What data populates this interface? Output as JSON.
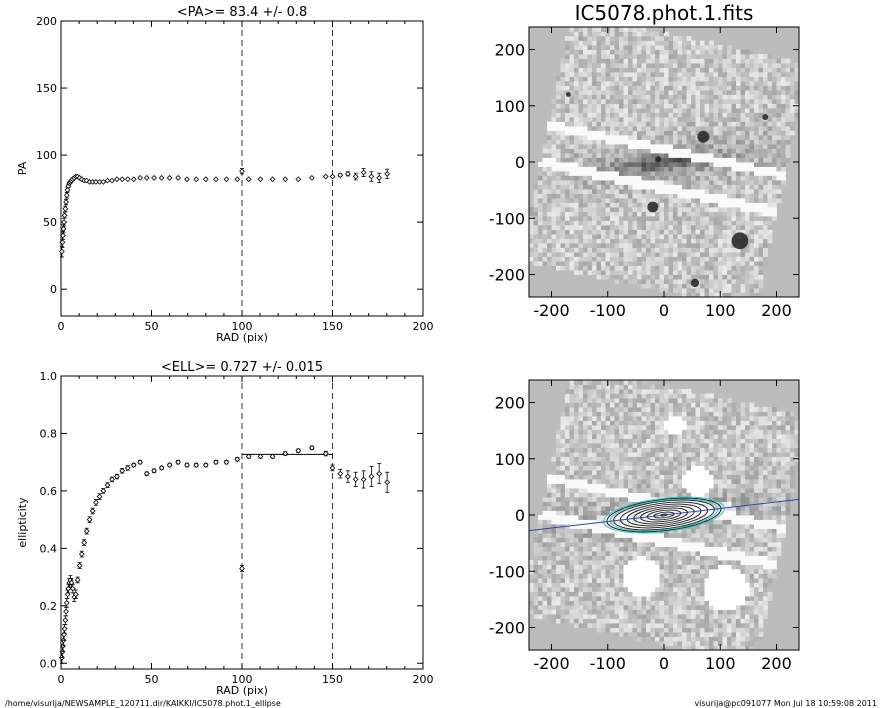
{
  "footer": {
    "left": "/home/visurija/NEWSAMPLE_120711.dir/KAIKKI/IC5078.phot.1_ellipse",
    "right": "visurija@pc091077  Mon Jul 18 10:59:08 2011"
  },
  "chart_data": [
    {
      "type": "scatter",
      "title": "<PA>=  83.4 +/-   0.8",
      "xlabel": "RAD (pix)",
      "ylabel": "PA",
      "xlim": [
        0,
        200
      ],
      "ylim": [
        -20,
        200
      ],
      "xticks": [
        0,
        50,
        100,
        150,
        200
      ],
      "yticks": [
        0,
        50,
        100,
        150,
        200
      ],
      "vlines": [
        100,
        150
      ],
      "points": [
        [
          0.5,
          28,
          4
        ],
        [
          0.8,
          35,
          4
        ],
        [
          1.1,
          40,
          3
        ],
        [
          1.4,
          45,
          3
        ],
        [
          1.7,
          50,
          3
        ],
        [
          2.0,
          55,
          2
        ],
        [
          2.4,
          60,
          2
        ],
        [
          2.8,
          65,
          2
        ],
        [
          3.2,
          70,
          2
        ],
        [
          3.6,
          74,
          1.5
        ],
        [
          4.1,
          77,
          1
        ],
        [
          4.6,
          79,
          1
        ],
        [
          5.2,
          80,
          1
        ],
        [
          5.8,
          81,
          1
        ],
        [
          6.5,
          82,
          1
        ],
        [
          7.3,
          83,
          0.8
        ],
        [
          8.2,
          84,
          0.8
        ],
        [
          9.2,
          84,
          0.6
        ],
        [
          10.3,
          83,
          0.6
        ],
        [
          11.5,
          82,
          0.5
        ],
        [
          12.8,
          81,
          0.5
        ],
        [
          14.2,
          81,
          0.5
        ],
        [
          15.8,
          80,
          0.5
        ],
        [
          17.5,
          80,
          0.4
        ],
        [
          19.3,
          80,
          0.4
        ],
        [
          21.3,
          80,
          0.4
        ],
        [
          23.4,
          80,
          0.4
        ],
        [
          25.7,
          81,
          0.3
        ],
        [
          28.2,
          81,
          0.3
        ],
        [
          30.9,
          82,
          0.3
        ],
        [
          33.8,
          82,
          0.3
        ],
        [
          36.9,
          82,
          0.3
        ],
        [
          40.2,
          82,
          0.3
        ],
        [
          43.7,
          83,
          0.3
        ],
        [
          47.4,
          83,
          0.3
        ],
        [
          51.4,
          83,
          0.3
        ],
        [
          55.6,
          83,
          0.3
        ],
        [
          60.0,
          83,
          0.3
        ],
        [
          64.7,
          83,
          0.3
        ],
        [
          69.6,
          82,
          0.3
        ],
        [
          74.7,
          82,
          0.3
        ],
        [
          80.0,
          82,
          0.3
        ],
        [
          85.6,
          82,
          0.3
        ],
        [
          91.4,
          82,
          0.3
        ],
        [
          97.4,
          82,
          0.3
        ],
        [
          100.0,
          88,
          2
        ],
        [
          103.7,
          82,
          0.3
        ],
        [
          110.2,
          82,
          0.3
        ],
        [
          116.9,
          82,
          0.3
        ],
        [
          123.9,
          82,
          0.3
        ],
        [
          131.1,
          82,
          0.3
        ],
        [
          138.6,
          83,
          0.3
        ],
        [
          146.3,
          84,
          0.5
        ],
        [
          150.0,
          84,
          0.5
        ],
        [
          154.3,
          85,
          1
        ],
        [
          158.5,
          86,
          1.5
        ],
        [
          162.8,
          84,
          2.5
        ],
        [
          167.2,
          87,
          3
        ],
        [
          171.5,
          84,
          3.5
        ],
        [
          175.8,
          83,
          3.5
        ],
        [
          180.2,
          86,
          3.5
        ]
      ]
    },
    {
      "type": "scatter",
      "title": "<ELL>= 0.727 +/-  0.015",
      "xlabel": "RAD (pix)",
      "ylabel": "ellipticity",
      "xlim": [
        0,
        200
      ],
      "ylim": [
        -0.02,
        1.0
      ],
      "xticks": [
        0,
        50,
        100,
        150,
        200
      ],
      "yticks": [
        0.0,
        0.2,
        0.4,
        0.6,
        0.8,
        1.0
      ],
      "vlines": [
        100,
        150
      ],
      "hline_segment": {
        "x": [
          100,
          150
        ],
        "y": 0.727
      },
      "points": [
        [
          0.5,
          0.02,
          0.02
        ],
        [
          0.8,
          0.04,
          0.02
        ],
        [
          1.1,
          0.06,
          0.02
        ],
        [
          1.4,
          0.08,
          0.02
        ],
        [
          1.7,
          0.1,
          0.02
        ],
        [
          2.0,
          0.12,
          0.015
        ],
        [
          2.4,
          0.15,
          0.015
        ],
        [
          2.8,
          0.18,
          0.015
        ],
        [
          3.2,
          0.21,
          0.015
        ],
        [
          3.6,
          0.24,
          0.015
        ],
        [
          4.1,
          0.26,
          0.015
        ],
        [
          4.6,
          0.28,
          0.015
        ],
        [
          5.2,
          0.29,
          0.015
        ],
        [
          5.8,
          0.28,
          0.015
        ],
        [
          6.5,
          0.26,
          0.015
        ],
        [
          7.3,
          0.23,
          0.015
        ],
        [
          8.2,
          0.24,
          0.015
        ],
        [
          9.2,
          0.29,
          0.01
        ],
        [
          10.3,
          0.34,
          0.01
        ],
        [
          11.5,
          0.38,
          0.01
        ],
        [
          12.8,
          0.42,
          0.01
        ],
        [
          14.2,
          0.46,
          0.01
        ],
        [
          15.8,
          0.5,
          0.01
        ],
        [
          17.5,
          0.53,
          0.01
        ],
        [
          19.3,
          0.56,
          0.01
        ],
        [
          21.3,
          0.58,
          0.01
        ],
        [
          23.4,
          0.6,
          0.008
        ],
        [
          25.7,
          0.62,
          0.008
        ],
        [
          28.2,
          0.64,
          0.008
        ],
        [
          30.9,
          0.65,
          0.008
        ],
        [
          33.8,
          0.67,
          0.008
        ],
        [
          36.9,
          0.68,
          0.008
        ],
        [
          40.2,
          0.69,
          0.006
        ],
        [
          43.7,
          0.7,
          0.006
        ],
        [
          47.4,
          0.66,
          0.006
        ],
        [
          51.4,
          0.67,
          0.006
        ],
        [
          55.6,
          0.68,
          0.006
        ],
        [
          60.0,
          0.69,
          0.006
        ],
        [
          64.7,
          0.7,
          0.006
        ],
        [
          69.6,
          0.69,
          0.006
        ],
        [
          74.7,
          0.69,
          0.006
        ],
        [
          80.0,
          0.69,
          0.006
        ],
        [
          85.6,
          0.7,
          0.006
        ],
        [
          91.4,
          0.7,
          0.006
        ],
        [
          97.4,
          0.71,
          0.006
        ],
        [
          100.0,
          0.33,
          0.01
        ],
        [
          103.7,
          0.72,
          0.006
        ],
        [
          110.2,
          0.72,
          0.006
        ],
        [
          116.9,
          0.72,
          0.006
        ],
        [
          123.9,
          0.73,
          0.006
        ],
        [
          131.1,
          0.74,
          0.006
        ],
        [
          138.6,
          0.75,
          0.006
        ],
        [
          146.3,
          0.73,
          0.008
        ],
        [
          150.0,
          0.68,
          0.01
        ],
        [
          154.3,
          0.66,
          0.015
        ],
        [
          158.5,
          0.65,
          0.02
        ],
        [
          162.8,
          0.64,
          0.025
        ],
        [
          167.2,
          0.64,
          0.03
        ],
        [
          171.5,
          0.65,
          0.035
        ],
        [
          175.8,
          0.66,
          0.035
        ],
        [
          180.2,
          0.63,
          0.035
        ]
      ]
    },
    {
      "type": "heatmap",
      "title": "IC5078.phot.1.fits",
      "xlim": [
        -240,
        240
      ],
      "ylim": [
        -240,
        240
      ],
      "xticks": [
        -200,
        -100,
        0,
        100,
        200
      ],
      "yticks": [
        -200,
        -100,
        0,
        100,
        200
      ],
      "colormap": "grayscale"
    },
    {
      "type": "heatmap",
      "title": "",
      "xlim": [
        -240,
        240
      ],
      "ylim": [
        -240,
        240
      ],
      "xticks": [
        -200,
        -100,
        0,
        100,
        200
      ],
      "yticks": [
        -200,
        -100,
        0,
        100,
        200
      ],
      "colormap": "grayscale",
      "overlay": {
        "isophotes": {
          "count": 18,
          "pa_deg": 83.4,
          "ellipticity": 0.727,
          "max_sma": 150
        },
        "major_axis_line": true,
        "colors": {
          "line": "#3344aa",
          "outer_ellipses": "#40c8c8"
        }
      }
    }
  ]
}
